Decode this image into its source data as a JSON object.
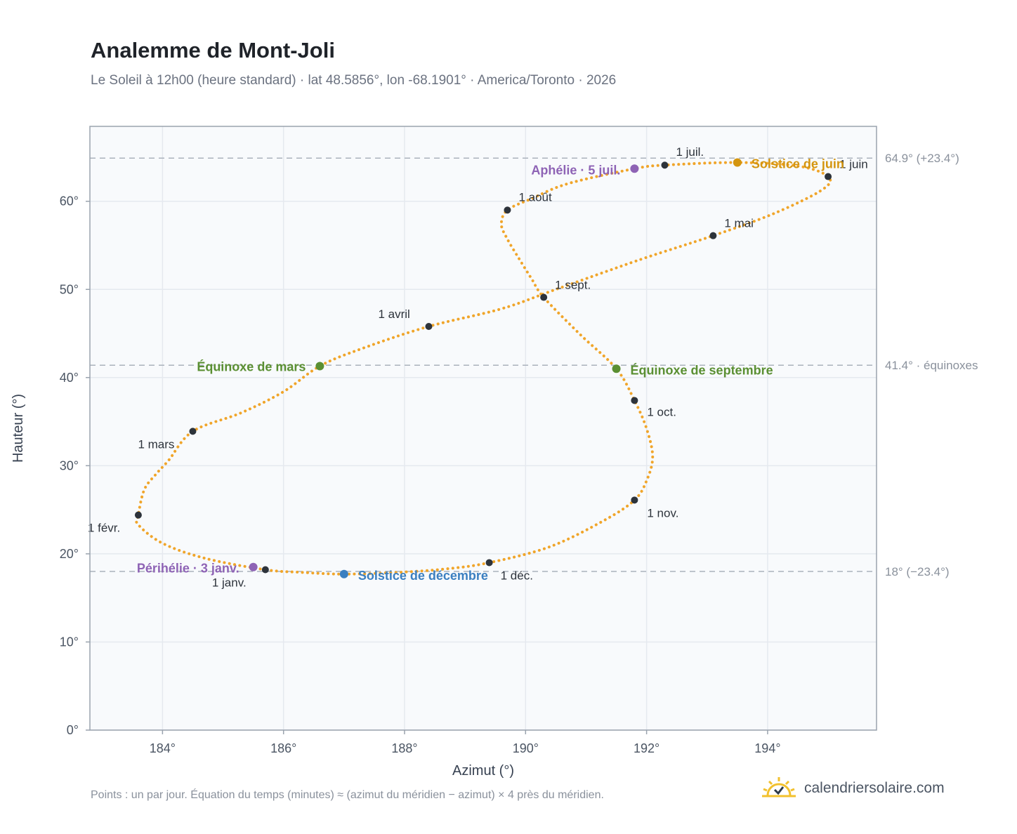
{
  "header": {
    "title": "Analemme de Mont-Joli",
    "subtitle": "Le Soleil à 12h00 (heure standard) · lat 48.5856°, lon -68.1901° · America/Toronto · 2026"
  },
  "footer": {
    "note": "Points : un par jour. Équation du temps (minutes) ≈ (azimut du méridien − azimut) × 4 près du méridien.",
    "brand": "calendriersolaire.com"
  },
  "colors": {
    "curve": "#f0a52a",
    "month_marker": "#2d333b",
    "solstice_june": "#d4950f",
    "solstice_december": "#3b7fc0",
    "equinox": "#5a8f32",
    "apsis": "#8e63b5",
    "plot_bg": "#f8fafc",
    "grid": "#e5e9ef",
    "reference_line": "#aab2bc"
  },
  "chart_data": {
    "type": "scatter",
    "title": "Analemme de Mont-Joli",
    "xlabel": "Azimut (°)",
    "ylabel": "Hauteur (°)",
    "xlim": [
      182.8,
      195.8
    ],
    "ylim": [
      0,
      68.5
    ],
    "x_ticks": [
      184,
      186,
      188,
      190,
      192,
      194
    ],
    "x_tick_labels": [
      "184°",
      "186°",
      "188°",
      "190°",
      "192°",
      "194°"
    ],
    "y_ticks": [
      0,
      10,
      20,
      30,
      40,
      50,
      60
    ],
    "y_tick_labels": [
      "0°",
      "10°",
      "20°",
      "30°",
      "40°",
      "50°",
      "60°"
    ],
    "grid": true,
    "reference_lines": [
      {
        "y": 64.9,
        "label": "64.9° (+23.4°)"
      },
      {
        "y": 41.4,
        "label": "41.4° · équinoxes"
      },
      {
        "y": 18.0,
        "label": "18° (−23.4°)"
      }
    ],
    "curve_points": [
      [
        185.7,
        18.2
      ],
      [
        184.7,
        19.5
      ],
      [
        184.0,
        21.2
      ],
      [
        183.6,
        23.3
      ],
      [
        183.6,
        24.4
      ],
      [
        183.7,
        27.3
      ],
      [
        183.9,
        29.1
      ],
      [
        184.1,
        30.6
      ],
      [
        184.5,
        33.9
      ],
      [
        185.3,
        36.0
      ],
      [
        186.0,
        38.4
      ],
      [
        186.6,
        41.3
      ],
      [
        187.3,
        43.3
      ],
      [
        188.4,
        45.8
      ],
      [
        189.6,
        47.8
      ],
      [
        190.5,
        50.0
      ],
      [
        191.9,
        53.4
      ],
      [
        193.1,
        56.1
      ],
      [
        194.1,
        58.6
      ],
      [
        194.9,
        61.3
      ],
      [
        195.0,
        62.8
      ],
      [
        194.5,
        64.0
      ],
      [
        193.5,
        64.4
      ],
      [
        192.3,
        64.1
      ],
      [
        191.8,
        63.7
      ],
      [
        190.7,
        62.0
      ],
      [
        190.1,
        60.3
      ],
      [
        189.7,
        59.0
      ],
      [
        189.6,
        57.4
      ],
      [
        189.7,
        55.7
      ],
      [
        189.9,
        53.4
      ],
      [
        190.1,
        51.2
      ],
      [
        190.3,
        49.1
      ],
      [
        190.9,
        44.9
      ],
      [
        191.5,
        41.0
      ],
      [
        191.8,
        37.4
      ],
      [
        192.0,
        34.2
      ],
      [
        192.1,
        31.0
      ],
      [
        192.0,
        28.3
      ],
      [
        191.8,
        26.1
      ],
      [
        191.3,
        23.8
      ],
      [
        190.4,
        20.8
      ],
      [
        189.4,
        19.0
      ],
      [
        188.7,
        18.3
      ],
      [
        187.9,
        17.9
      ],
      [
        187.0,
        17.7
      ],
      [
        186.3,
        17.9
      ],
      [
        185.7,
        18.2
      ]
    ],
    "month_markers": [
      {
        "label": "1 janv.",
        "x": 185.7,
        "y": 18.2
      },
      {
        "label": "1 févr.",
        "x": 183.6,
        "y": 24.4
      },
      {
        "label": "1 mars",
        "x": 184.5,
        "y": 33.9
      },
      {
        "label": "1 avril",
        "x": 188.4,
        "y": 45.8
      },
      {
        "label": "1 mai",
        "x": 193.1,
        "y": 56.1
      },
      {
        "label": "1 juin",
        "x": 195.0,
        "y": 62.8
      },
      {
        "label": "1 juil.",
        "x": 192.3,
        "y": 64.1
      },
      {
        "label": "1 août",
        "x": 189.7,
        "y": 59.0
      },
      {
        "label": "1 sept.",
        "x": 190.3,
        "y": 49.1
      },
      {
        "label": "1 oct.",
        "x": 191.8,
        "y": 37.4
      },
      {
        "label": "1 nov.",
        "x": 191.8,
        "y": 26.1
      },
      {
        "label": "1 déc.",
        "x": 189.4,
        "y": 19.0
      }
    ],
    "events": [
      {
        "label": "Solstice de juin",
        "x": 193.5,
        "y": 64.4,
        "color": "#d4950f"
      },
      {
        "label": "Solstice de décembre",
        "x": 187.0,
        "y": 17.7,
        "color": "#3b7fc0"
      },
      {
        "label": "Équinoxe de mars",
        "x": 186.6,
        "y": 41.3,
        "color": "#5a8f32"
      },
      {
        "label": "Équinoxe de septembre",
        "x": 191.5,
        "y": 41.0,
        "color": "#5a8f32"
      },
      {
        "label": "Aphélie · 5 juil.",
        "x": 191.8,
        "y": 63.7,
        "color": "#8e63b5"
      },
      {
        "label": "Périhélie · 3 janv.",
        "x": 185.5,
        "y": 18.5,
        "color": "#8e63b5"
      }
    ]
  }
}
